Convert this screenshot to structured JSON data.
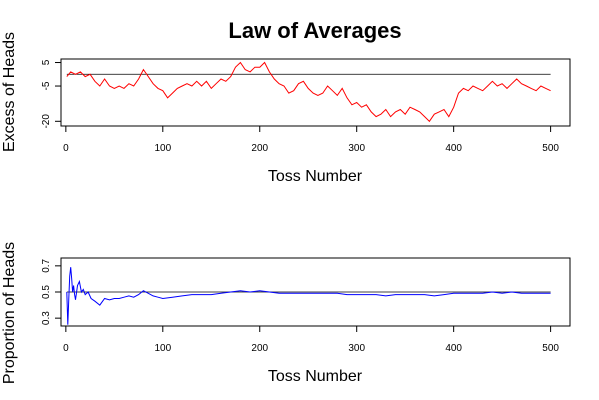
{
  "title": "Law of Averages",
  "chart_data": [
    {
      "type": "line",
      "xlabel": "Toss Number",
      "ylabel": "Excess of Heads",
      "xlim": [
        -5,
        520
      ],
      "ylim": [
        -22,
        6.5
      ],
      "xticks": [
        0,
        100,
        200,
        300,
        400,
        500
      ],
      "yticks": [
        5,
        -5,
        -20
      ],
      "reference_line": 0,
      "series": [
        {
          "color": "#ff0000",
          "x": [
            1,
            5,
            10,
            15,
            20,
            25,
            30,
            35,
            40,
            45,
            50,
            55,
            60,
            65,
            70,
            75,
            80,
            85,
            90,
            95,
            100,
            105,
            110,
            115,
            120,
            125,
            130,
            135,
            140,
            145,
            150,
            155,
            160,
            165,
            170,
            175,
            180,
            185,
            190,
            195,
            200,
            205,
            210,
            215,
            220,
            225,
            230,
            235,
            240,
            245,
            250,
            255,
            260,
            265,
            270,
            275,
            280,
            285,
            290,
            295,
            300,
            305,
            310,
            315,
            320,
            325,
            330,
            335,
            340,
            345,
            350,
            355,
            360,
            365,
            370,
            375,
            380,
            385,
            390,
            395,
            400,
            405,
            410,
            415,
            420,
            425,
            430,
            435,
            440,
            445,
            450,
            455,
            460,
            465,
            470,
            475,
            480,
            485,
            490,
            495,
            500
          ],
          "y": [
            -1,
            1,
            0,
            1,
            -1,
            0,
            -3,
            -5,
            -2,
            -5,
            -6,
            -5,
            -6,
            -4,
            -5,
            -2,
            2,
            -1,
            -4,
            -6,
            -7,
            -10,
            -8,
            -6,
            -5,
            -4,
            -5,
            -3,
            -5,
            -3,
            -6,
            -4,
            -2,
            -3,
            -1,
            3,
            5,
            2,
            1,
            3,
            3,
            5,
            1,
            -2,
            -4,
            -5,
            -8,
            -7,
            -4,
            -3,
            -6,
            -8,
            -9,
            -8,
            -5,
            -7,
            -9,
            -6,
            -10,
            -13,
            -12,
            -14,
            -13,
            -16,
            -18,
            -17,
            -15,
            -18,
            -16,
            -15,
            -17,
            -14,
            -15,
            -16,
            -18,
            -20,
            -17,
            -16,
            -15,
            -18,
            -14,
            -8,
            -6,
            -7,
            -5,
            -6,
            -7,
            -5,
            -3,
            -5,
            -4,
            -6,
            -4,
            -2,
            -4,
            -5,
            -6,
            -7,
            -5,
            -6,
            -7
          ]
        }
      ]
    },
    {
      "type": "line",
      "xlabel": "Toss Number",
      "ylabel": "Proportion of Heads",
      "xlim": [
        -5,
        520
      ],
      "ylim": [
        0.24,
        0.76
      ],
      "xticks": [
        0,
        100,
        200,
        300,
        400,
        500
      ],
      "yticks": [
        0.3,
        0.5,
        0.7
      ],
      "reference_line": 0.5,
      "series": [
        {
          "color": "#0000ff",
          "x": [
            1,
            2,
            3,
            4,
            5,
            6,
            7,
            8,
            9,
            10,
            12,
            14,
            16,
            18,
            20,
            23,
            26,
            30,
            35,
            40,
            45,
            50,
            55,
            60,
            65,
            70,
            75,
            80,
            85,
            90,
            95,
            100,
            110,
            120,
            130,
            140,
            150,
            160,
            170,
            180,
            190,
            200,
            210,
            220,
            230,
            240,
            250,
            260,
            270,
            280,
            290,
            300,
            310,
            320,
            330,
            340,
            350,
            360,
            370,
            380,
            390,
            400,
            410,
            420,
            430,
            440,
            450,
            460,
            470,
            480,
            490,
            500
          ],
          "y": [
            0.5,
            0.25,
            0.45,
            0.62,
            0.69,
            0.6,
            0.5,
            0.55,
            0.48,
            0.44,
            0.55,
            0.58,
            0.5,
            0.52,
            0.48,
            0.5,
            0.45,
            0.43,
            0.4,
            0.45,
            0.44,
            0.45,
            0.45,
            0.46,
            0.47,
            0.46,
            0.48,
            0.51,
            0.49,
            0.47,
            0.46,
            0.45,
            0.46,
            0.47,
            0.48,
            0.48,
            0.48,
            0.49,
            0.5,
            0.51,
            0.5,
            0.51,
            0.5,
            0.49,
            0.49,
            0.49,
            0.49,
            0.49,
            0.49,
            0.49,
            0.48,
            0.48,
            0.48,
            0.48,
            0.47,
            0.48,
            0.48,
            0.48,
            0.48,
            0.47,
            0.48,
            0.49,
            0.49,
            0.49,
            0.49,
            0.5,
            0.49,
            0.5,
            0.49,
            0.49,
            0.49,
            0.49
          ]
        }
      ]
    }
  ]
}
